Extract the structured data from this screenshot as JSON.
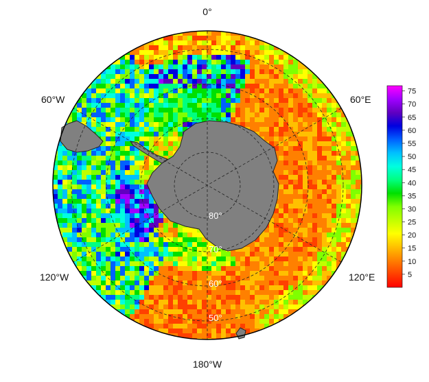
{
  "map": {
    "projection": "south-polar-stereographic",
    "longitude_labels": {
      "top": "0°",
      "upper_left": "60°W",
      "upper_right": "60°E",
      "lower_left": "120°W",
      "lower_right": "120°E",
      "bottom": "180°W"
    },
    "latitude_labels": [
      "80°",
      "70°",
      "60°",
      "50°"
    ],
    "land_color": "#808080",
    "grid_style": "dashed"
  },
  "colorbar": {
    "ticks": [
      "75",
      "70",
      "65",
      "60",
      "55",
      "50",
      "45",
      "40",
      "35",
      "30",
      "25",
      "20",
      "15",
      "10",
      "5"
    ],
    "min": 0,
    "max": 77,
    "colors": [
      "#ff0000",
      "#ff4000",
      "#ff8000",
      "#ffc000",
      "#ffff00",
      "#c0ff00",
      "#80ff00",
      "#00e000",
      "#00ff80",
      "#00ffe0",
      "#00c0ff",
      "#0060ff",
      "#0000e0",
      "#6000c0",
      "#a000ff",
      "#ff00ff"
    ]
  },
  "chart_data": {
    "type": "heatmap",
    "description_region": "Southern Ocean",
    "colorbar_range": [
      0,
      77
    ],
    "ticks": [
      5,
      10,
      15,
      20,
      25,
      30,
      35,
      40,
      45,
      50,
      55,
      60,
      65,
      70,
      75
    ],
    "xlabel": "",
    "ylabel": ""
  }
}
